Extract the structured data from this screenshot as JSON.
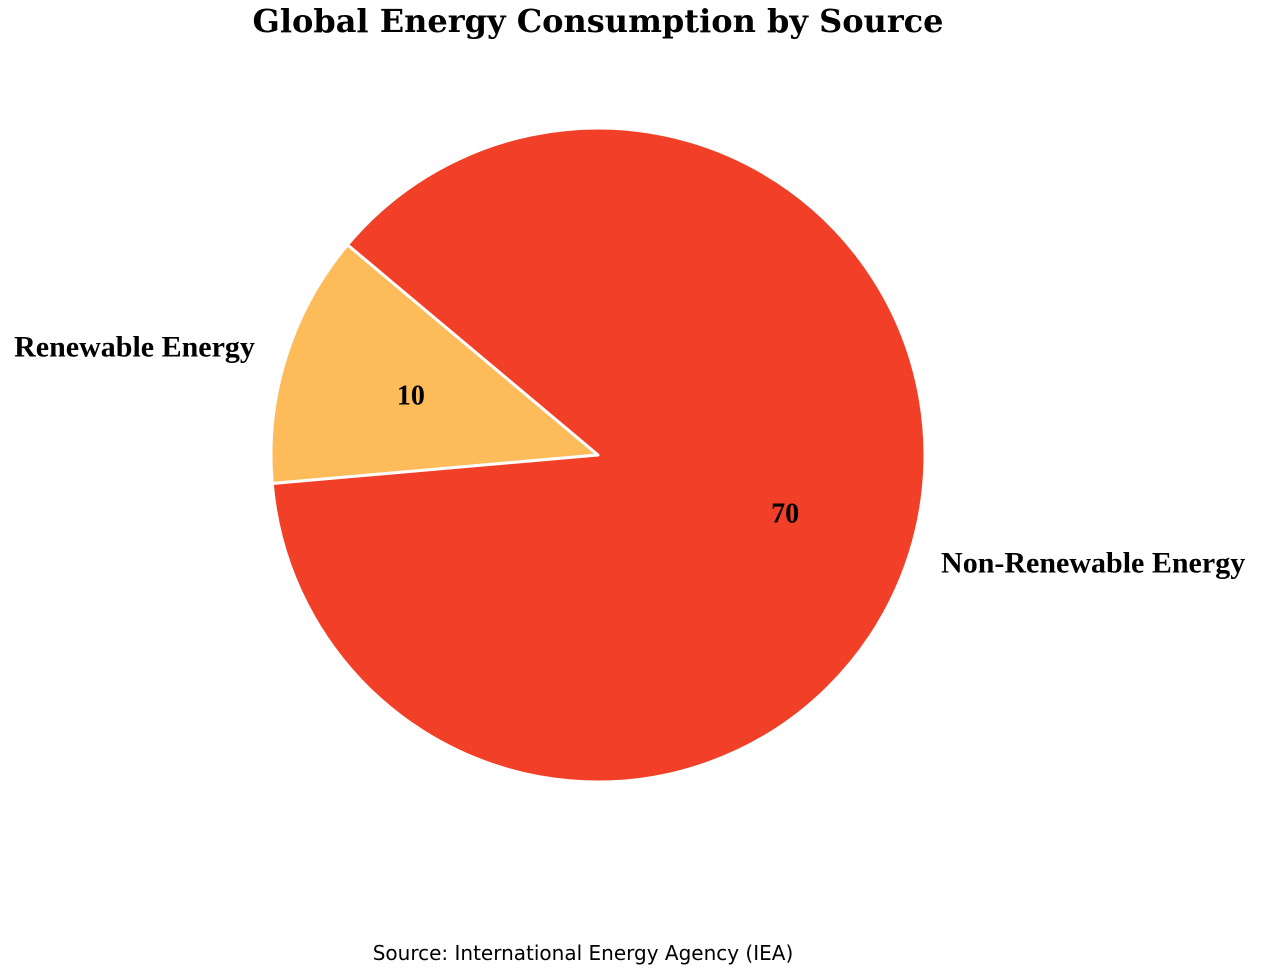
{
  "chart_data": {
    "type": "pie",
    "title": "Global Energy Consumption by Source",
    "source": "Source: International Energy Agency (IEA)",
    "slices": [
      {
        "label": "Renewable Energy",
        "value": 10,
        "color": "#FDBB5A"
      },
      {
        "label": "Non-Renewable Energy",
        "value": 70,
        "color": "#F23F27"
      }
    ],
    "legend": "none"
  }
}
